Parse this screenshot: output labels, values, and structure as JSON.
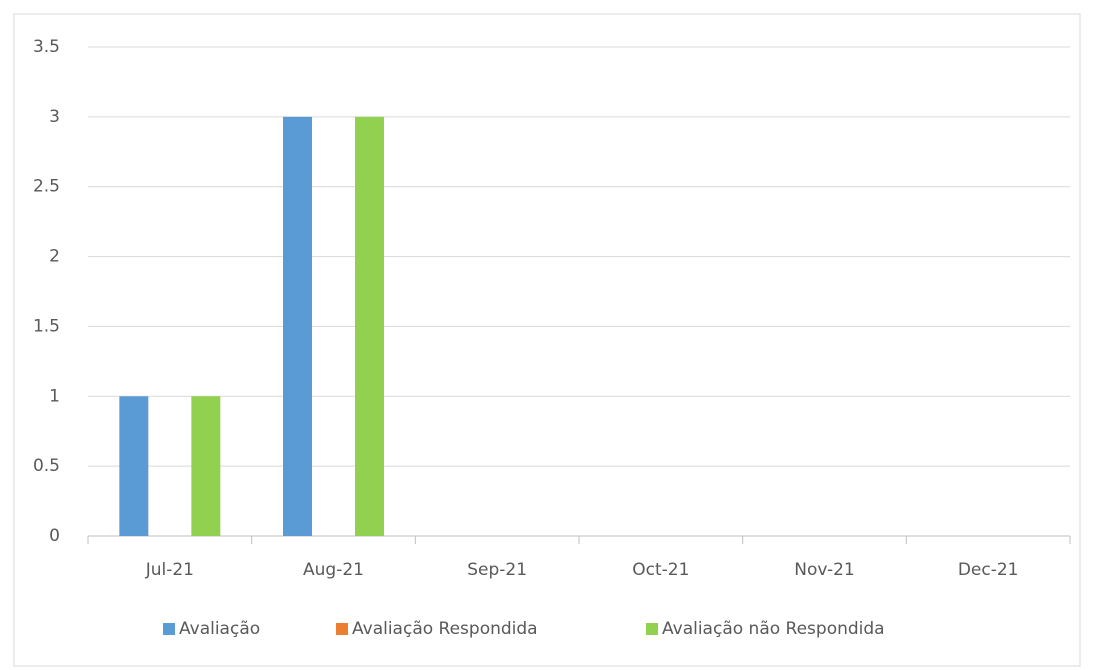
{
  "chart_data": {
    "type": "bar",
    "categories": [
      "Jul-21",
      "Aug-21",
      "Sep-21",
      "Oct-21",
      "Nov-21",
      "Dec-21"
    ],
    "series": [
      {
        "name": "Avaliação",
        "color": "#5b9bd5",
        "values": [
          1,
          3,
          0,
          0,
          0,
          0
        ]
      },
      {
        "name": "Avaliação Respondida",
        "color": "#ed7d31",
        "values": [
          0,
          0,
          0,
          0,
          0,
          0
        ]
      },
      {
        "name": "Avaliação não Respondida",
        "color": "#92d050",
        "values": [
          1,
          3,
          0,
          0,
          0,
          0
        ]
      }
    ],
    "ylim": [
      0,
      3.5
    ],
    "yticks": [
      0,
      0.5,
      1,
      1.5,
      2,
      2.5,
      3,
      3.5
    ],
    "grid": true,
    "legend": "bottom"
  }
}
